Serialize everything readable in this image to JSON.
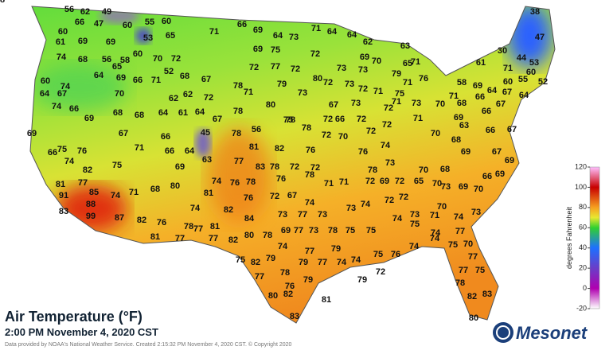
{
  "header": {
    "title": "Air Temperature (°F)",
    "subtitle": "2:00 PM November 4, 2020 CST",
    "credit": "Data provided by NOAA's National Weather Service. Created 2:15:32 PM November 4, 2020 CST. © Copyright 2020"
  },
  "logo": "Mesonet",
  "colorbar": {
    "label": "degrees Fahrenheit",
    "lim": [
      -20,
      120
    ],
    "ticks": [
      -20,
      0,
      20,
      40,
      60,
      80,
      100,
      120
    ]
  },
  "stations": {
    "values": [
      56,
      62,
      49,
      60,
      66,
      47,
      60,
      55,
      60,
      53,
      61,
      74,
      69,
      69,
      68,
      56,
      58,
      60,
      70,
      72,
      65,
      71,
      66,
      69,
      64,
      73,
      71,
      64,
      64,
      62,
      63,
      65,
      52,
      68,
      67,
      64,
      69,
      66,
      71,
      60,
      74,
      64,
      67,
      70,
      62,
      62,
      72,
      74,
      66,
      69,
      68,
      68,
      64,
      61,
      64,
      67,
      69,
      66,
      75,
      76,
      74,
      67,
      71,
      66,
      45,
      64,
      66,
      63,
      69,
      75,
      82,
      81,
      77,
      91,
      83,
      88,
      99,
      85,
      74,
      71,
      68,
      80,
      87,
      82,
      76,
      74,
      78,
      81,
      77,
      77,
      81,
      77,
      82,
      82,
      81,
      74,
      76,
      78,
      76,
      84,
      80,
      78,
      78,
      71,
      78,
      80,
      78,
      73,
      79,
      72,
      77,
      69,
      75,
      72,
      72,
      72,
      80,
      73,
      73,
      73,
      69,
      70,
      56,
      81,
      82,
      75,
      78,
      72,
      72,
      76,
      70,
      66,
      72,
      72,
      72,
      74,
      76,
      78,
      73,
      72,
      78,
      77,
      83,
      78,
      72,
      72,
      71,
      71,
      78,
      76,
      72,
      67,
      74,
      73,
      77,
      73,
      73,
      74,
      72,
      72,
      69,
      72,
      65,
      70,
      68,
      70,
      69,
      77,
      73,
      78,
      75,
      75,
      74,
      77,
      79,
      77,
      74,
      74,
      75,
      76,
      74,
      74,
      75,
      77,
      74,
      75,
      74,
      73,
      71,
      74,
      73,
      75,
      82,
      77,
      79,
      78,
      79,
      79,
      76,
      80,
      82,
      83,
      81,
      79,
      72,
      70,
      77,
      75,
      77,
      78,
      82,
      83,
      80,
      79,
      65,
      71,
      76,
      71,
      75,
      71,
      72,
      71,
      72,
      73,
      67,
      73,
      70,
      71,
      70,
      69,
      68,
      66,
      66,
      67,
      67,
      64,
      64,
      60,
      58,
      69,
      71,
      71,
      55,
      60,
      52,
      53,
      44,
      47,
      38,
      30,
      61,
      66,
      67,
      63,
      68,
      69,
      67,
      69,
      66,
      69,
      69,
      70,
      70,
      73,
      68
    ]
  }
}
